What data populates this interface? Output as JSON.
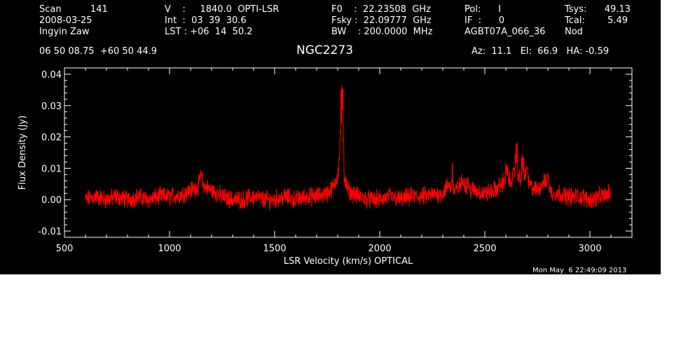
{
  "header": {
    "col1": [
      "Scan          141",
      "2008-03-25",
      "Ingyin Zaw"
    ],
    "col2": [
      "V    :     1840.0  OPTI-LSR",
      "Int  :  03  39  30.6",
      "LST : +06  14  50.2"
    ],
    "col3": [
      "F0    :  22.23508  GHz",
      "Fsky :  22.09777  GHz",
      "BW    : 200.0000  MHz"
    ],
    "col4": [
      "Pol:      I",
      "IF  :      0",
      "AGBT07A_066_36"
    ],
    "col5_labels": [
      "Tsys:",
      "Tcal:",
      "Nod"
    ],
    "col5_values": [
      "49.13",
      "5.49",
      ""
    ]
  },
  "coords": "06 50 08.75  +60 50 44.9",
  "source_name": "NGC2273",
  "pointing": "Az:  11.1   El:  66.9   HA: -0.59",
  "timestamp": "Mon May  6 22:49:09 2013",
  "colors": {
    "background": "#000000",
    "axes": "#ffffff",
    "trace": "#ff0000"
  },
  "chart_data": {
    "type": "line",
    "xlabel": "LSR Velocity (km/s) OPTICAL",
    "ylabel": "Flux Density (Jy)",
    "xlim": [
      500,
      3200
    ],
    "ylim": [
      -0.012,
      0.042
    ],
    "xticks": [
      500,
      1000,
      1500,
      2000,
      2500,
      3000
    ],
    "yticks": [
      -0.01,
      0.0,
      0.01,
      0.02,
      0.03,
      0.04
    ],
    "ytick_labels": [
      "-0.01",
      "0.00",
      "0.01",
      "0.02",
      "0.03",
      "0.04"
    ],
    "series": [
      {
        "x": [
          600,
          650,
          700,
          750,
          800,
          850,
          900,
          950,
          1000,
          1050,
          1100,
          1130,
          1150,
          1170,
          1200,
          1250,
          1300,
          1350,
          1400,
          1450,
          1500,
          1550,
          1600,
          1650,
          1700,
          1750,
          1780,
          1800,
          1810,
          1815,
          1820,
          1825,
          1830,
          1840,
          1850,
          1870,
          1900,
          1950,
          2000,
          2050,
          2100,
          2150,
          2200,
          2250,
          2300,
          2330,
          2340,
          2350,
          2400,
          2420,
          2450,
          2500,
          2550,
          2580,
          2600,
          2620,
          2640,
          2650,
          2660,
          2670,
          2680,
          2700,
          2720,
          2750,
          2780,
          2800,
          2820,
          2850,
          2900,
          2950,
          3000,
          3050,
          3100
        ],
        "y": [
          0.0,
          0.001,
          0.0,
          0.001,
          0.0,
          0.001,
          0.0,
          0.001,
          0.001,
          0.0015,
          0.003,
          0.004,
          0.006,
          0.004,
          0.003,
          0.001,
          0.0,
          0.0,
          0.001,
          0.0,
          0.0,
          0.001,
          0.0,
          0.001,
          0.001,
          0.002,
          0.004,
          0.008,
          0.015,
          0.025,
          0.022,
          0.014,
          0.008,
          0.005,
          0.003,
          0.002,
          0.001,
          0.0,
          0.0,
          0.001,
          0.0,
          0.001,
          0.001,
          0.0015,
          0.002,
          0.005,
          0.003,
          0.002,
          0.006,
          0.003,
          0.003,
          0.002,
          0.003,
          0.005,
          0.007,
          0.006,
          0.008,
          0.012,
          0.008,
          0.006,
          0.008,
          0.006,
          0.004,
          0.003,
          0.006,
          0.004,
          0.002,
          0.002,
          0.001,
          0.001,
          0.0,
          0.001,
          0.002
        ],
        "spikes": [
          [
            1150,
            0.0085
          ],
          [
            1825,
            0.039
          ],
          [
            1820,
            0.028
          ],
          [
            2345,
            0.013
          ],
          [
            2420,
            0.0075
          ],
          [
            2605,
            0.011
          ],
          [
            2650,
            0.018
          ],
          [
            2680,
            0.015
          ],
          [
            2700,
            0.011
          ],
          [
            2800,
            0.009
          ]
        ]
      }
    ]
  }
}
